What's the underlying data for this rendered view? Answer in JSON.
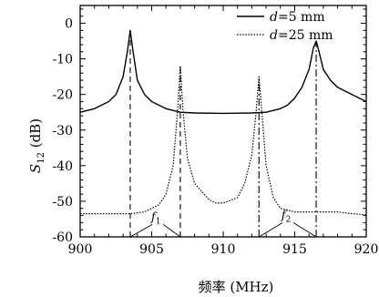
{
  "chart_data": {
    "type": "line",
    "xlabel": "频率 (MHz)",
    "ylabel_main": "S",
    "ylabel_sub": "12",
    "ylabel_unit": " (dB)",
    "xlim": [
      900,
      920
    ],
    "ylim": [
      -60,
      5
    ],
    "xticks": [
      900,
      905,
      910,
      915,
      920
    ],
    "yticks": [
      0,
      -10,
      -20,
      -30,
      -40,
      -50,
      -60
    ],
    "grid": false,
    "legend_position": "top-right",
    "series": [
      {
        "name_var": "d",
        "name_rest": "=5 mm",
        "style": "solid",
        "x": [
          900,
          901,
          902,
          902.5,
          903,
          903.3,
          903.5,
          903.7,
          904,
          904.5,
          905,
          906,
          907,
          908,
          910,
          912,
          913,
          914,
          914.5,
          915,
          915.5,
          916,
          916.3,
          916.5,
          916.7,
          917,
          917.5,
          918,
          919,
          920
        ],
        "y": [
          -25,
          -24,
          -22,
          -20,
          -15,
          -8,
          -2,
          -8,
          -16,
          -20,
          -22,
          -24,
          -25,
          -25.2,
          -25.3,
          -25.2,
          -25,
          -24,
          -23,
          -21,
          -18,
          -13,
          -7,
          -5,
          -8,
          -13,
          -16,
          -18,
          -20,
          -22
        ]
      },
      {
        "name_var": "d",
        "name_rest": "=25 mm",
        "style": "dotted",
        "x": [
          900,
          902,
          903.5,
          904.5,
          905.5,
          906,
          906.5,
          906.8,
          907,
          907.2,
          907.5,
          908,
          909,
          909.5,
          910,
          911,
          911.5,
          912,
          912.3,
          912.5,
          912.7,
          913,
          913.5,
          914,
          915,
          916,
          917,
          918,
          919,
          920
        ],
        "y": [
          -53.5,
          -53.5,
          -53.5,
          -53,
          -51,
          -48,
          -40,
          -25,
          -12,
          -25,
          -38,
          -45,
          -49.5,
          -50.5,
          -50.5,
          -49,
          -45,
          -37,
          -25,
          -15,
          -25,
          -40,
          -49,
          -52,
          -53,
          -53,
          -53,
          -53,
          -53.5,
          -53.8
        ]
      }
    ],
    "vertical_markers": [
      {
        "x": 903.5,
        "style": "dashed",
        "from": -60,
        "to": -2
      },
      {
        "x": 907,
        "style": "dashed",
        "from": -60,
        "to": -12
      },
      {
        "x": 912.5,
        "style": "dashdot",
        "from": -60,
        "to": -15
      },
      {
        "x": 916.5,
        "style": "dashdot",
        "from": -60,
        "to": -5
      }
    ],
    "annotations": [
      {
        "label_main": "f",
        "label_sub": "1",
        "x_from": 903.5,
        "x_to": 907,
        "text_x": 905.3,
        "text_y": -55.5
      },
      {
        "label_main": "f",
        "label_sub": "2",
        "x_from": 912.5,
        "x_to": 916.5,
        "text_x": 914.4,
        "text_y": -55
      }
    ]
  }
}
